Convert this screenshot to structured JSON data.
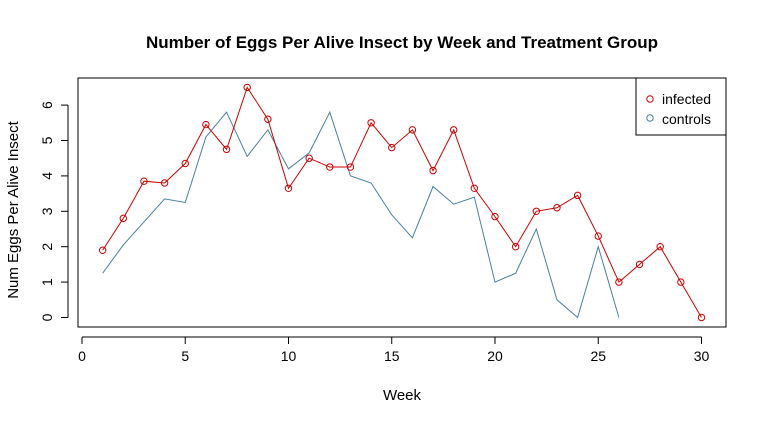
{
  "chart_data": {
    "type": "line",
    "title": "Number of Eggs Per Alive Insect by Week and Treatment Group",
    "xlabel": "Week",
    "ylabel": "Num Eggs Per Alive Insect",
    "xlim": [
      0,
      30
    ],
    "ylim": [
      0,
      6.5
    ],
    "xticks": [
      "0",
      "5",
      "10",
      "15",
      "20",
      "25",
      "30"
    ],
    "yticks": [
      "0",
      "1",
      "2",
      "3",
      "4",
      "5",
      "6"
    ],
    "grid": false,
    "legend_position": "top-right",
    "series": [
      {
        "name": "infected",
        "color": "#cc0000",
        "style": "line+points",
        "x": [
          1,
          2,
          3,
          4,
          5,
          6,
          7,
          8,
          9,
          10,
          11,
          12,
          13,
          14,
          15,
          16,
          17,
          18,
          19,
          20,
          21,
          22,
          23,
          24,
          25,
          26,
          27,
          28,
          29,
          30
        ],
        "values": [
          1.9,
          2.8,
          3.85,
          3.8,
          4.35,
          5.45,
          4.75,
          6.5,
          5.6,
          3.65,
          4.5,
          4.25,
          4.25,
          5.5,
          4.8,
          5.3,
          4.15,
          5.3,
          3.65,
          2.85,
          2.0,
          3.0,
          3.1,
          3.45,
          2.3,
          1.0,
          1.5,
          2.0,
          1.0,
          0.0
        ]
      },
      {
        "name": "controls",
        "color": "#4a7fa0",
        "style": "line",
        "x": [
          1,
          2,
          3,
          4,
          5,
          6,
          7,
          8,
          9,
          10,
          11,
          12,
          13,
          14,
          15,
          16,
          17,
          18,
          19,
          20,
          21,
          22,
          23,
          24,
          25,
          26
        ],
        "values": [
          1.25,
          2.05,
          2.7,
          3.35,
          3.25,
          5.1,
          5.8,
          4.55,
          5.3,
          4.2,
          4.65,
          5.8,
          4.0,
          3.8,
          2.9,
          2.25,
          3.7,
          3.2,
          3.4,
          1.0,
          1.25,
          2.5,
          0.5,
          0.0,
          2.0,
          0.0
        ]
      }
    ]
  }
}
